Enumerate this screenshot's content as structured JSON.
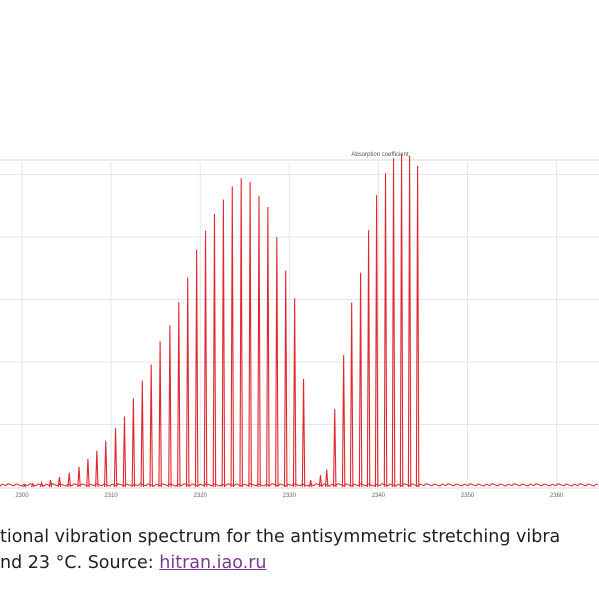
{
  "chart_data": {
    "type": "line",
    "title": "Absorption coefficient",
    "xlabel": "",
    "ylabel": "",
    "x_ticks": [
      "2300",
      "2310",
      "2320",
      "2330",
      "2340",
      "2350",
      "2360"
    ],
    "xlim": [
      2300,
      2370
    ],
    "ylim": [
      0,
      5.2
    ],
    "grid": true,
    "line_color": "#e0282e",
    "series": [
      {
        "values": [
          {
            "x": 2300.3,
            "y": 0.03
          },
          {
            "x": 2301.2,
            "y": 0.05
          },
          {
            "x": 2302.2,
            "y": 0.07
          },
          {
            "x": 2303.2,
            "y": 0.11
          },
          {
            "x": 2304.2,
            "y": 0.16
          },
          {
            "x": 2305.3,
            "y": 0.23
          },
          {
            "x": 2306.4,
            "y": 0.32
          },
          {
            "x": 2307.4,
            "y": 0.45
          },
          {
            "x": 2308.4,
            "y": 0.58
          },
          {
            "x": 2309.4,
            "y": 0.74
          },
          {
            "x": 2310.5,
            "y": 0.94
          },
          {
            "x": 2311.5,
            "y": 1.13
          },
          {
            "x": 2312.5,
            "y": 1.42
          },
          {
            "x": 2313.5,
            "y": 1.7
          },
          {
            "x": 2314.5,
            "y": 1.96
          },
          {
            "x": 2315.5,
            "y": 2.33
          },
          {
            "x": 2316.6,
            "y": 2.59
          },
          {
            "x": 2317.6,
            "y": 2.96
          },
          {
            "x": 2318.6,
            "y": 3.35
          },
          {
            "x": 2319.6,
            "y": 3.8
          },
          {
            "x": 2320.6,
            "y": 4.1
          },
          {
            "x": 2321.6,
            "y": 4.37
          },
          {
            "x": 2322.6,
            "y": 4.6
          },
          {
            "x": 2323.6,
            "y": 4.81
          },
          {
            "x": 2324.6,
            "y": 4.94
          },
          {
            "x": 2325.6,
            "y": 4.88
          },
          {
            "x": 2326.6,
            "y": 4.66
          },
          {
            "x": 2327.6,
            "y": 4.48
          },
          {
            "x": 2328.6,
            "y": 4.0
          },
          {
            "x": 2329.6,
            "y": 3.46
          },
          {
            "x": 2330.6,
            "y": 3.02
          },
          {
            "x": 2331.6,
            "y": 1.73
          },
          {
            "x": 2332.4,
            "y": 0.11
          },
          {
            "x": 2333.5,
            "y": 0.19
          },
          {
            "x": 2334.2,
            "y": 0.28
          },
          {
            "x": 2335.1,
            "y": 1.25
          },
          {
            "x": 2336.1,
            "y": 2.11
          },
          {
            "x": 2337.0,
            "y": 2.95
          },
          {
            "x": 2338.0,
            "y": 3.43
          },
          {
            "x": 2338.9,
            "y": 4.11
          },
          {
            "x": 2339.8,
            "y": 4.67
          },
          {
            "x": 2340.8,
            "y": 5.02
          },
          {
            "x": 2341.7,
            "y": 5.26
          },
          {
            "x": 2342.6,
            "y": 5.32
          },
          {
            "x": 2343.5,
            "y": 5.3
          },
          {
            "x": 2344.4,
            "y": 5.14
          }
        ]
      }
    ]
  },
  "caption": {
    "line1": "tional vibration spectrum for the antisymmetric stretching vibra",
    "line2_prefix": "nd 23 °C. Source: ",
    "link_text": "hitran.iao.ru"
  }
}
